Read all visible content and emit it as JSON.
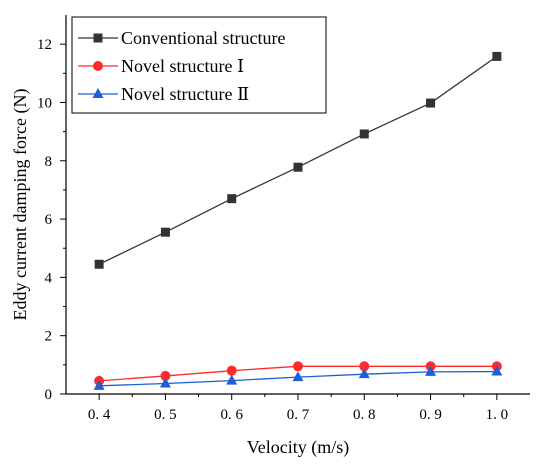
{
  "chart_data": {
    "type": "line",
    "title": "",
    "xlabel": "Velocity (m/s)",
    "ylabel": "Eddy current damping force (N)",
    "x": [
      0.4,
      0.5,
      0.6,
      0.7,
      0.8,
      0.9,
      1.0
    ],
    "x_tick_labels": [
      "0. 4",
      "0. 5",
      "0. 6",
      "0. 7",
      "0. 8",
      "0. 9",
      "1. 0"
    ],
    "xlim": [
      0.35,
      1.05
    ],
    "ylim": [
      0,
      13
    ],
    "y_ticks": [
      0,
      2,
      4,
      6,
      8,
      10,
      12
    ],
    "grid": false,
    "legend_position": "top-left",
    "series": [
      {
        "name": "Conventional structure",
        "marker": "square",
        "color": "#333333",
        "values": [
          4.45,
          5.55,
          6.7,
          7.78,
          8.92,
          9.98,
          11.58
        ]
      },
      {
        "name": "Novel structure Ⅰ",
        "marker": "circle",
        "color": "#ff2a2a",
        "values": [
          0.45,
          0.62,
          0.8,
          0.95,
          0.95,
          0.95,
          0.95
        ]
      },
      {
        "name": "Novel structure Ⅱ",
        "marker": "triangle",
        "color": "#1f5fd6",
        "values": [
          0.28,
          0.36,
          0.46,
          0.58,
          0.68,
          0.76,
          0.77
        ]
      }
    ]
  }
}
